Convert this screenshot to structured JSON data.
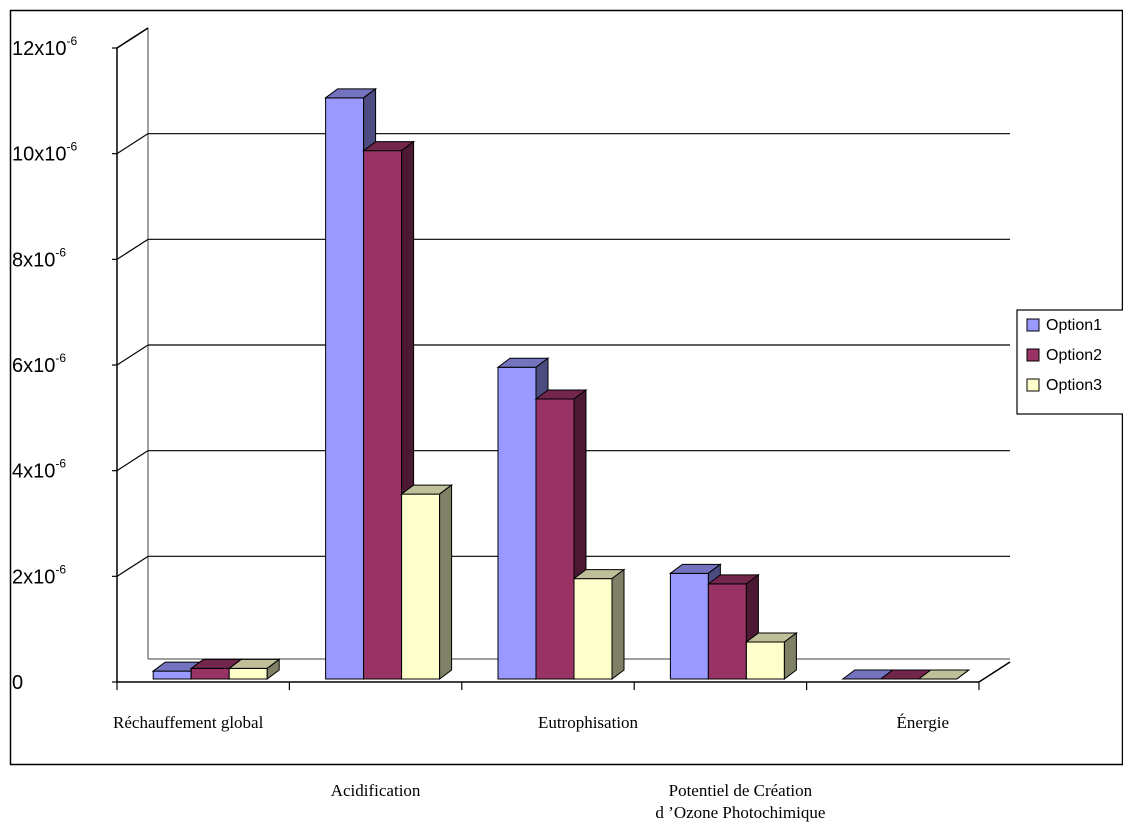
{
  "chart_data": {
    "type": "bar",
    "style": "3d-clustered-column",
    "categories": [
      "Réchauffement global",
      "Acidification",
      "Eutrophisation",
      "Potentiel de Création d ’Ozone Photochimique",
      "Énergie"
    ],
    "category_label_lines": [
      [
        "Réchauffement global"
      ],
      [
        "Acidification"
      ],
      [
        "Eutrophisation"
      ],
      [
        "Potentiel de Création",
        "d ’Ozone  Photochimique"
      ],
      [
        "Énergie"
      ]
    ],
    "series": [
      {
        "name": "Option1",
        "color": "#9999ff",
        "side_color": "#4c4c80",
        "top_color": "#7373bf",
        "values": [
          1.5e-07,
          1.1e-05,
          5.9e-06,
          2e-06,
          0
        ]
      },
      {
        "name": "Option2",
        "color": "#993366",
        "side_color": "#4c1933",
        "top_color": "#73264c",
        "values": [
          2e-07,
          1e-05,
          5.3e-06,
          1.8e-06,
          0
        ]
      },
      {
        "name": "Option3",
        "color": "#ffffcc",
        "side_color": "#808066",
        "top_color": "#bfbf99",
        "values": [
          2e-07,
          3.5e-06,
          1.9e-06,
          7e-07,
          0
        ]
      }
    ],
    "yaxis": {
      "ticks": [
        0,
        2e-06,
        4e-06,
        6e-06,
        8e-06,
        1e-05,
        1.2e-05
      ],
      "tick_labels": [
        {
          "base": "0",
          "exp": ""
        },
        {
          "base": "2x10",
          "exp": "-6"
        },
        {
          "base": "4x10",
          "exp": "-6"
        },
        {
          "base": "6x10",
          "exp": "-6"
        },
        {
          "base": "8x10",
          "exp": "-6"
        },
        {
          "base": "10x10",
          "exp": "-6"
        },
        {
          "base": "12x10",
          "exp": "-6"
        }
      ],
      "ylim": [
        0,
        1.2e-05
      ]
    },
    "grid": true,
    "legend": "right"
  }
}
